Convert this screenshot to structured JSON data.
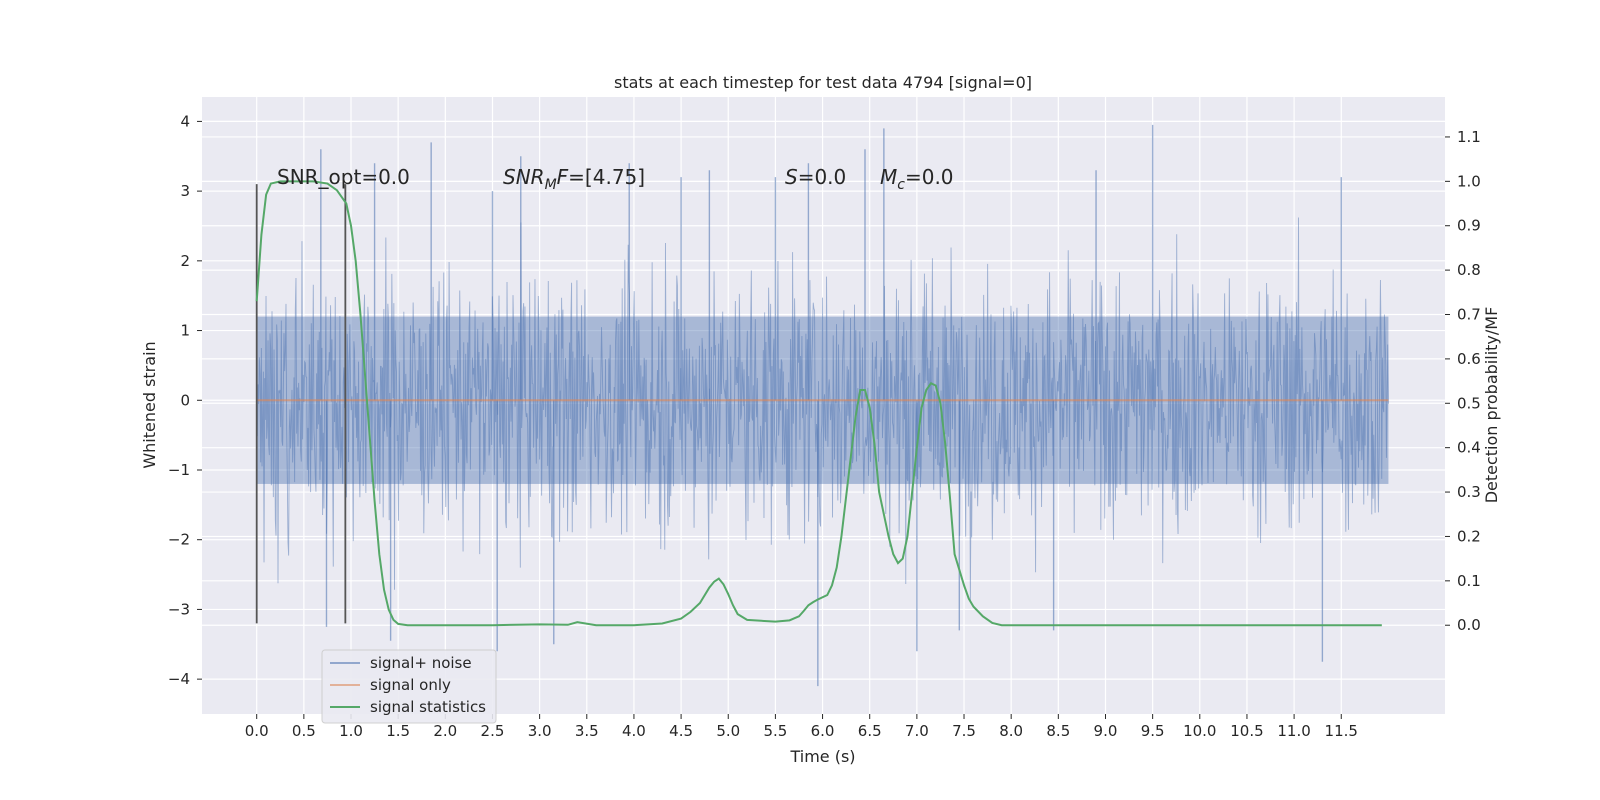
{
  "chart_data": {
    "type": "line",
    "title": "stats at each timestep for test data 4794 [signal=0]",
    "xlabel": "Time (s)",
    "ylabel_left": "Whitened strain",
    "ylabel_right": "Detection probability/MF",
    "xlim": [
      -0.58,
      12.6
    ],
    "ylim_left": [
      -4.5,
      4.35
    ],
    "ylim_right": [
      -0.2,
      1.19
    ],
    "x_ticks": [
      0.0,
      0.5,
      1.0,
      1.5,
      2.0,
      2.5,
      3.0,
      3.5,
      4.0,
      4.5,
      5.0,
      5.5,
      6.0,
      6.5,
      7.0,
      7.5,
      8.0,
      8.5,
      9.0,
      9.5,
      10.0,
      10.5,
      11.0,
      11.5
    ],
    "x_tick_labels": [
      "0.0",
      "0.5",
      "1.0",
      "1.5",
      "2.0",
      "2.5",
      "3.0",
      "3.5",
      "4.0",
      "4.5",
      "5.0",
      "5.5",
      "6.0",
      "6.5",
      "7.0",
      "7.5",
      "8.0",
      "8.5",
      "9.0",
      "9.5",
      "10.0",
      "10.5",
      "11.0",
      "11.5"
    ],
    "y_left_ticks": [
      4,
      3,
      2,
      1,
      0,
      -1,
      -2,
      -3,
      -4
    ],
    "y_left_tick_labels": [
      "4",
      "3",
      "2",
      "1",
      "0",
      "−1",
      "−2",
      "−3",
      "−4"
    ],
    "y_right_ticks": [
      1.1,
      1.0,
      0.9,
      0.8,
      0.7,
      0.6,
      0.5,
      0.4,
      0.3,
      0.2,
      0.1,
      0.0
    ],
    "y_right_tick_labels": [
      "1.1",
      "1.0",
      "0.9",
      "0.8",
      "0.7",
      "0.6",
      "0.5",
      "0.4",
      "0.3",
      "0.2",
      "0.1",
      "0.0"
    ],
    "annotations": [
      {
        "id": "snr-opt",
        "text": "SNR_opt=0.0"
      },
      {
        "id": "snr-mf",
        "text": "SNR",
        "sub": "M",
        "rest": "F=[4.75]"
      },
      {
        "id": "s-val",
        "text": "S",
        "rest": "=0.0"
      },
      {
        "id": "mc-val",
        "text": "M",
        "sub": "c",
        "rest": "=0.0"
      }
    ],
    "vertical_markers": [
      {
        "x": 0.0,
        "y_range": [
          -3.2,
          3.1
        ]
      },
      {
        "x": 0.94,
        "y_range": [
          -3.2,
          3.1
        ]
      }
    ],
    "noise_spikes": [
      {
        "x": 0.68,
        "y": 3.6
      },
      {
        "x": 0.74,
        "y": -3.25
      },
      {
        "x": 1.25,
        "y": 3.4
      },
      {
        "x": 1.42,
        "y": -3.45
      },
      {
        "x": 1.85,
        "y": 3.7
      },
      {
        "x": 2.5,
        "y": 3.0
      },
      {
        "x": 2.55,
        "y": -3.6
      },
      {
        "x": 2.8,
        "y": 3.5
      },
      {
        "x": 3.15,
        "y": -3.5
      },
      {
        "x": 3.95,
        "y": 3.4
      },
      {
        "x": 4.5,
        "y": 3.2
      },
      {
        "x": 4.8,
        "y": 3.3
      },
      {
        "x": 5.5,
        "y": 3.2
      },
      {
        "x": 5.85,
        "y": 3.4
      },
      {
        "x": 5.95,
        "y": -4.1
      },
      {
        "x": 6.45,
        "y": 3.6
      },
      {
        "x": 6.65,
        "y": 3.9
      },
      {
        "x": 7.0,
        "y": -3.6
      },
      {
        "x": 7.45,
        "y": -3.3
      },
      {
        "x": 8.45,
        "y": -3.3
      },
      {
        "x": 8.9,
        "y": 3.3
      },
      {
        "x": 9.5,
        "y": 3.95
      },
      {
        "x": 11.3,
        "y": -3.75
      },
      {
        "x": 11.5,
        "y": 3.2
      }
    ],
    "series": [
      {
        "name": "signal+ noise",
        "axis": "left",
        "color": "#4c72b0",
        "kind": "noise",
        "x_range": [
          0.0,
          12.0
        ],
        "sigma": 0.95
      },
      {
        "name": "signal only",
        "axis": "left",
        "color": "#dd8452",
        "x": [
          0.0,
          12.0
        ],
        "y": [
          0.0,
          0.0
        ]
      },
      {
        "name": "signal statistics",
        "axis": "right",
        "color": "#55a868",
        "x": [
          0.0,
          0.05,
          0.1,
          0.15,
          0.25,
          0.4,
          0.6,
          0.75,
          0.85,
          0.95,
          1.0,
          1.05,
          1.1,
          1.15,
          1.2,
          1.25,
          1.3,
          1.35,
          1.4,
          1.45,
          1.5,
          1.6,
          1.8,
          2.5,
          3.0,
          3.3,
          3.4,
          3.6,
          4.0,
          4.3,
          4.5,
          4.6,
          4.7,
          4.8,
          4.85,
          4.9,
          4.95,
          5.0,
          5.05,
          5.1,
          5.2,
          5.35,
          5.5,
          5.65,
          5.75,
          5.8,
          5.85,
          5.9,
          5.95,
          6.05,
          6.1,
          6.15,
          6.2,
          6.3,
          6.35,
          6.4,
          6.45,
          6.5,
          6.55,
          6.6,
          6.7,
          6.75,
          6.8,
          6.85,
          6.9,
          7.0,
          7.05,
          7.1,
          7.15,
          7.2,
          7.25,
          7.3,
          7.35,
          7.4,
          7.5,
          7.55,
          7.6,
          7.7,
          7.8,
          7.9,
          8.0,
          8.3,
          9.0,
          9.5,
          10.0,
          10.5,
          11.0,
          11.5,
          11.93
        ],
        "y": [
          0.73,
          0.88,
          0.97,
          0.995,
          1.0,
          1.0,
          1.0,
          0.995,
          0.98,
          0.95,
          0.9,
          0.82,
          0.7,
          0.56,
          0.42,
          0.28,
          0.16,
          0.08,
          0.035,
          0.012,
          0.003,
          0.0,
          0.0,
          0.0,
          0.002,
          0.001,
          0.007,
          0.0,
          0.0,
          0.004,
          0.015,
          0.03,
          0.05,
          0.085,
          0.098,
          0.105,
          0.092,
          0.07,
          0.045,
          0.025,
          0.012,
          0.01,
          0.008,
          0.011,
          0.02,
          0.032,
          0.045,
          0.052,
          0.058,
          0.068,
          0.09,
          0.13,
          0.2,
          0.38,
          0.47,
          0.53,
          0.53,
          0.49,
          0.41,
          0.3,
          0.2,
          0.16,
          0.14,
          0.15,
          0.2,
          0.4,
          0.49,
          0.53,
          0.545,
          0.54,
          0.5,
          0.41,
          0.29,
          0.16,
          0.09,
          0.06,
          0.042,
          0.02,
          0.005,
          0.0,
          0.0,
          0.0,
          0.0,
          0.0,
          0.0,
          0.0,
          0.0,
          0.0,
          0.0
        ]
      }
    ],
    "legend": {
      "placement": "lower-left"
    },
    "grid": true
  }
}
